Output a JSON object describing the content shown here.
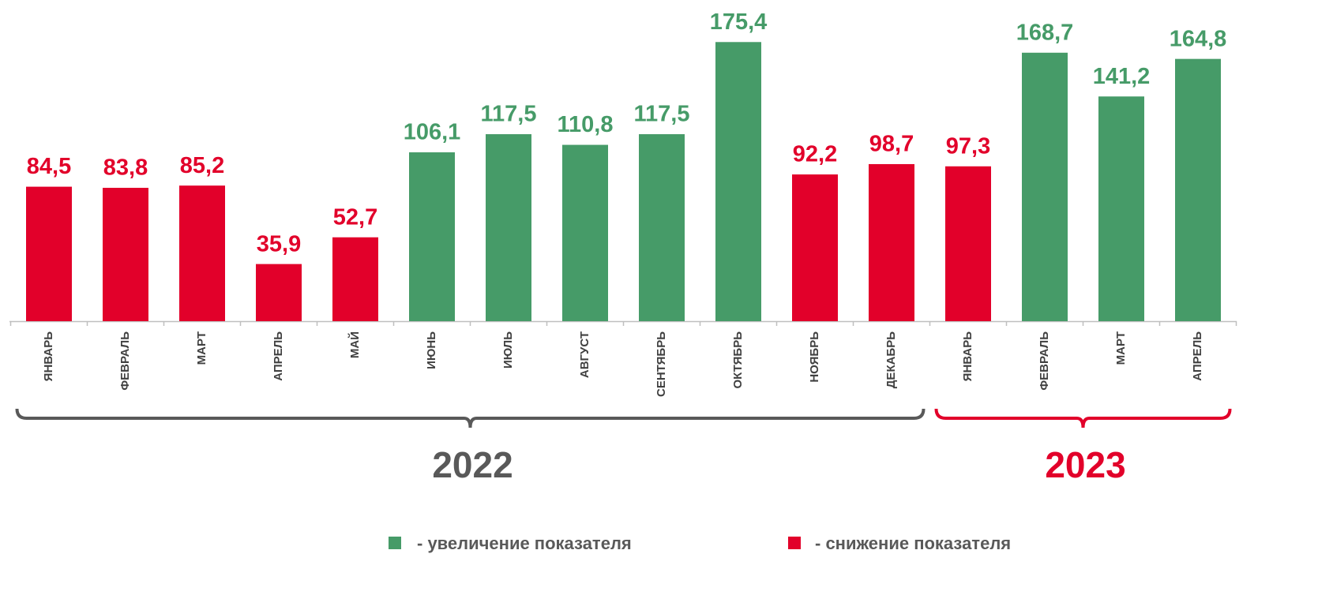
{
  "chart_data": {
    "type": "bar",
    "categories": [
      "ЯНВАРЬ",
      "ФЕВРАЛЬ",
      "МАРТ",
      "АПРЕЛЬ",
      "МАЙ",
      "ИЮНЬ",
      "ИЮЛЬ",
      "АВГУСТ",
      "СЕНТЯБРЬ",
      "ОКТЯБРЬ",
      "НОЯБРЬ",
      "ДЕКАБРЬ",
      "ЯНВАРЬ",
      "ФЕВРАЛЬ",
      "МАРТ",
      "АПРЕЛЬ"
    ],
    "values": [
      84.5,
      83.8,
      85.2,
      35.9,
      52.7,
      106.1,
      117.5,
      110.8,
      117.5,
      175.4,
      92.2,
      98.7,
      97.3,
      168.7,
      141.2,
      164.8
    ],
    "value_labels": [
      "84,5",
      "83,8",
      "85,2",
      "35,9",
      "52,7",
      "106,1",
      "117,5",
      "110,8",
      "117,5",
      "175,4",
      "92,2",
      "98,7",
      "97,3",
      "168,7",
      "141,2",
      "164,8"
    ],
    "colors": [
      "#e2002a",
      "#e2002a",
      "#e2002a",
      "#e2002a",
      "#e2002a",
      "#469b68",
      "#469b68",
      "#469b68",
      "#469b68",
      "#469b68",
      "#e2002a",
      "#e2002a",
      "#e2002a",
      "#469b68",
      "#469b68",
      "#469b68"
    ],
    "ylim": [
      0,
      180
    ],
    "groups": [
      {
        "label": "2022",
        "color": "#595959",
        "count": 12
      },
      {
        "label": "2023",
        "color": "#e2002a",
        "count": 4
      }
    ],
    "legend": [
      {
        "name": "- увеличение показателя",
        "color": "#469b68"
      },
      {
        "name": "- снижение показателя",
        "color": "#e2002a"
      }
    ]
  }
}
